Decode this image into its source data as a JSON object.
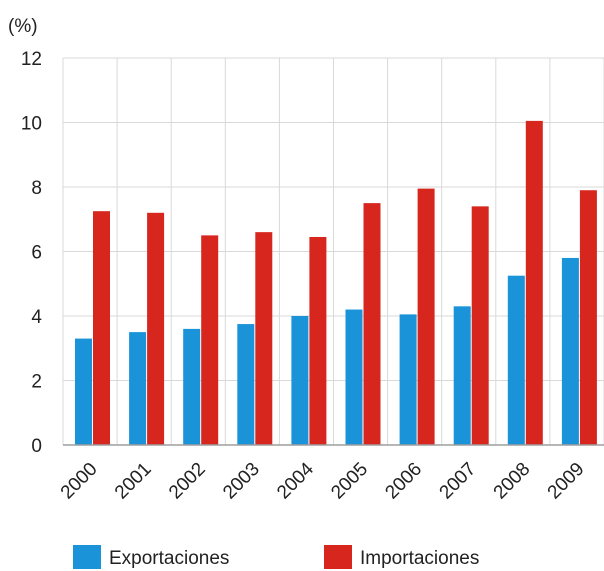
{
  "chart_data": {
    "type": "bar",
    "title": "",
    "unit_label": "(%)",
    "xlabel": "",
    "ylabel": "",
    "categories": [
      "2000",
      "2001",
      "2002",
      "2003",
      "2004",
      "2005",
      "2006",
      "2007",
      "2008",
      "2009"
    ],
    "series": [
      {
        "name": "Exportaciones",
        "color": "#1a93d8",
        "values": [
          3.3,
          3.5,
          3.6,
          3.75,
          4.0,
          4.2,
          4.05,
          4.3,
          5.25,
          5.8
        ]
      },
      {
        "name": "Importaciones",
        "color": "#d7261e",
        "values": [
          7.25,
          7.2,
          6.5,
          6.6,
          6.45,
          7.5,
          7.95,
          7.4,
          10.05,
          7.9
        ]
      }
    ],
    "ylim": [
      0,
      12
    ],
    "yticks": [
      "0",
      "2",
      "4",
      "6",
      "8",
      "10",
      "12"
    ],
    "grid": true,
    "legend_position": "bottom"
  }
}
